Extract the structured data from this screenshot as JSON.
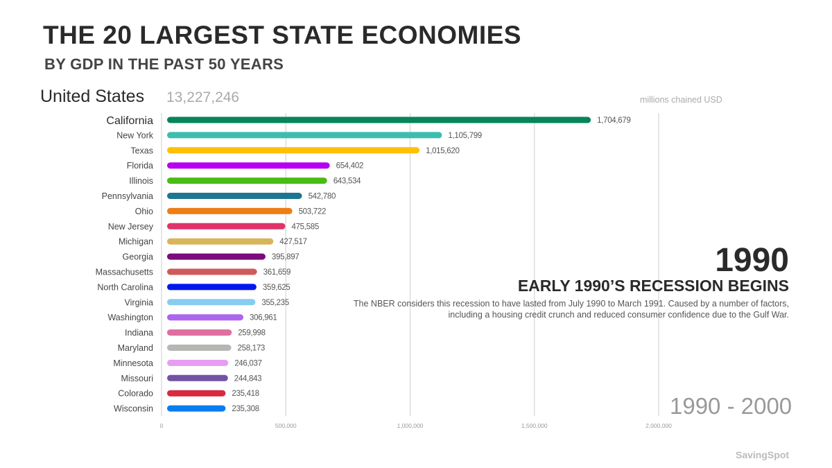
{
  "header": {
    "title": "THE 20 LARGEST STATE ECONOMIES",
    "subtitle": "BY GDP IN THE PAST 50 YEARS"
  },
  "country": {
    "name": "United States",
    "total": "13,227,246"
  },
  "units": "millions chained USD",
  "annotation": {
    "year": "1990",
    "title": "EARLY 1990’S RECESSION BEGINS",
    "description": "The NBER considers this recession to have lasted from July 1990 to March 1991. Caused by a number of factors, including a housing credit crunch and reduced consumer confidence due to the Gulf War."
  },
  "range_label": "1990 - 2000",
  "brand": "SavingSpot",
  "chart_data": {
    "type": "bar",
    "orientation": "horizontal",
    "title": "THE 20 LARGEST STATE ECONOMIES",
    "subtitle": "BY GDP IN THE PAST 50 YEARS",
    "xlabel": "millions chained USD",
    "ylabel": "",
    "xlim": [
      0,
      2000000
    ],
    "grid": true,
    "xticks": [
      0,
      500000,
      1000000,
      1500000,
      2000000
    ],
    "xtick_labels": [
      "0",
      "500,000",
      "1,000,000",
      "1,500,000",
      "2,000,000"
    ],
    "categories": [
      "California",
      "New York",
      "Texas",
      "Florida",
      "Illinois",
      "Pennsylvania",
      "Ohio",
      "New Jersey",
      "Michigan",
      "Georgia",
      "Massachusetts",
      "North Carolina",
      "Virginia",
      "Washington",
      "Indiana",
      "Maryland",
      "Minnesota",
      "Missouri",
      "Colorado",
      "Wisconsin"
    ],
    "values": [
      1704679,
      1105799,
      1015620,
      654402,
      643534,
      542780,
      503722,
      475585,
      427517,
      395897,
      361659,
      359625,
      355235,
      306961,
      259998,
      258173,
      246037,
      244843,
      235418,
      235308
    ],
    "value_labels": [
      "1,704,679",
      "1,105,799",
      "1,015,620",
      "654,402",
      "643,534",
      "542,780",
      "503,722",
      "475,585",
      "427,517",
      "395,897",
      "361,659",
      "359,625",
      "355,235",
      "306,961",
      "259,998",
      "258,173",
      "246,037",
      "244,843",
      "235,418",
      "235,308"
    ],
    "colors": [
      "#07855a",
      "#3dbdae",
      "#ffc000",
      "#b600ef",
      "#4bbb16",
      "#1e7590",
      "#ee7e14",
      "#e0336a",
      "#d8b55a",
      "#7b0c7b",
      "#d05a5a",
      "#0018ee",
      "#86cdf0",
      "#ac66ee",
      "#e06ea0",
      "#b5b7b2",
      "#e59ef1",
      "#7452a6",
      "#d7293f",
      "#0a7df0"
    ],
    "highlight": "California"
  }
}
